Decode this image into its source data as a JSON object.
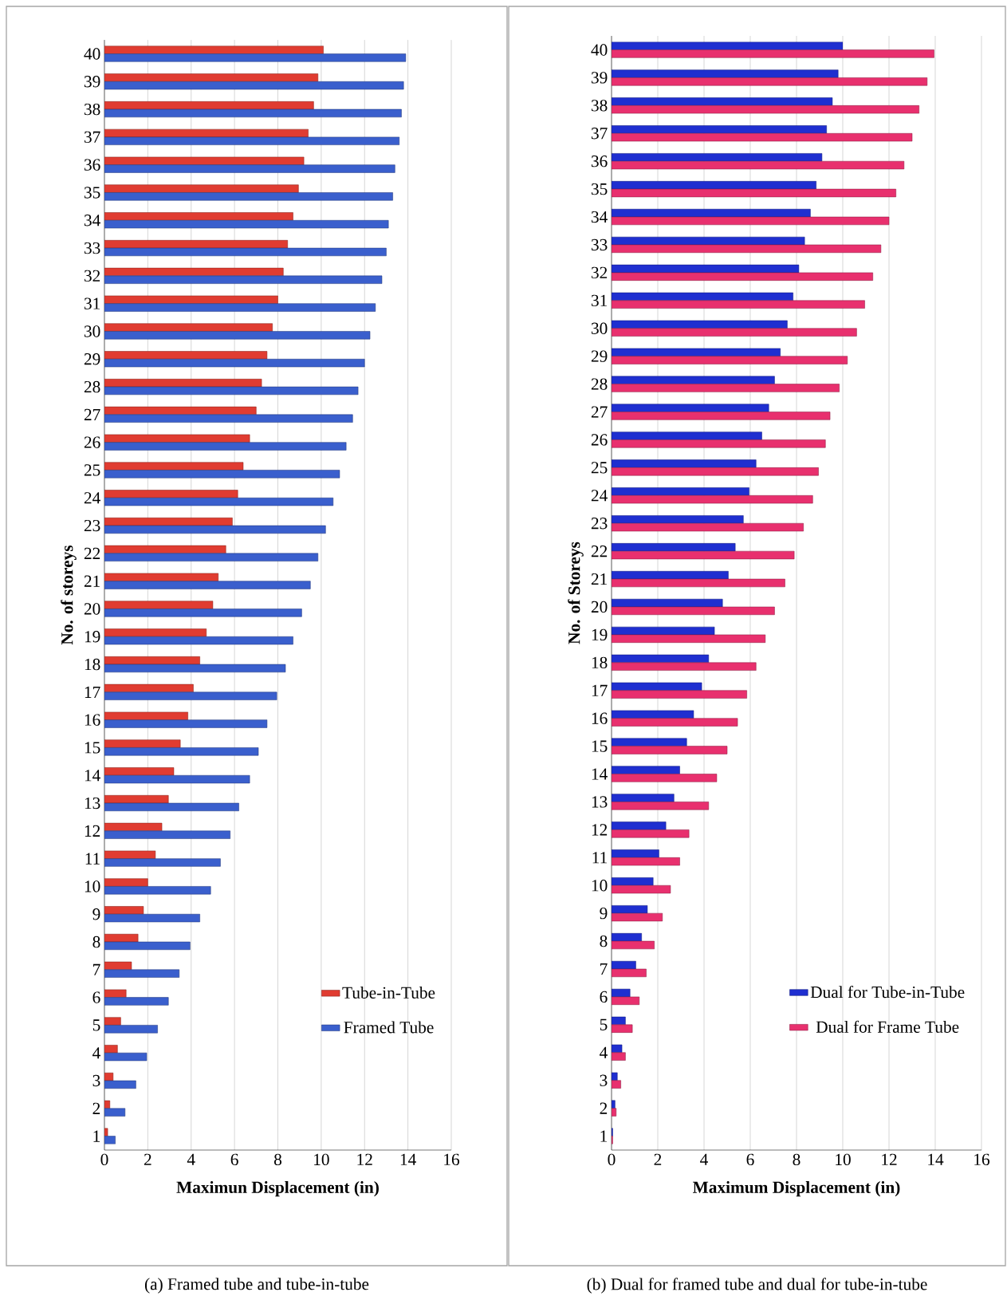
{
  "chart_data": [
    {
      "type": "bar",
      "orientation": "horizontal",
      "xlabel": "Maximun Displacement (in)",
      "ylabel": "No. of storeys",
      "categories": [
        "40",
        "39",
        "38",
        "37",
        "36",
        "35",
        "34",
        "33",
        "32",
        "31",
        "30",
        "29",
        "28",
        "27",
        "26",
        "25",
        "24",
        "23",
        "22",
        "21",
        "20",
        "19",
        "18",
        "17",
        "16",
        "15",
        "14",
        "13",
        "12",
        "11",
        "10",
        "9",
        "8",
        "7",
        "6",
        "5",
        "4",
        "3",
        "2",
        "1"
      ],
      "series": [
        {
          "name": "Tube-in-Tube",
          "color": "#e03c31",
          "values": [
            10.1,
            9.85,
            9.65,
            9.4,
            9.2,
            8.95,
            8.7,
            8.45,
            8.25,
            8.0,
            7.75,
            7.5,
            7.25,
            7.0,
            6.7,
            6.4,
            6.15,
            5.9,
            5.6,
            5.25,
            5.0,
            4.7,
            4.4,
            4.1,
            3.85,
            3.5,
            3.2,
            2.95,
            2.65,
            2.35,
            2.0,
            1.8,
            1.55,
            1.25,
            1.0,
            0.75,
            0.6,
            0.4,
            0.25,
            0.15
          ]
        },
        {
          "name": "Framed Tube",
          "color": "#3a5fcd",
          "values": [
            13.9,
            13.8,
            13.7,
            13.6,
            13.4,
            13.3,
            13.1,
            13.0,
            12.8,
            12.5,
            12.25,
            12.0,
            11.7,
            11.45,
            11.15,
            10.85,
            10.55,
            10.2,
            9.85,
            9.5,
            9.1,
            8.7,
            8.35,
            7.95,
            7.5,
            7.1,
            6.7,
            6.2,
            5.8,
            5.35,
            4.9,
            4.4,
            3.95,
            3.45,
            2.95,
            2.45,
            1.95,
            1.45,
            0.95,
            0.5
          ]
        }
      ],
      "xlim": [
        0,
        16
      ],
      "xticks": [
        0,
        2,
        4,
        6,
        8,
        10,
        12,
        14,
        16
      ],
      "grid": "x",
      "legend": "bottom right",
      "annotations": [
        "(a)  Framed tube and tube-in-tube"
      ]
    },
    {
      "type": "bar",
      "orientation": "horizontal",
      "xlabel": "Maximum Displacement (in)",
      "ylabel": "No. of Storeys",
      "categories": [
        "40",
        "39",
        "38",
        "37",
        "36",
        "35",
        "34",
        "33",
        "32",
        "31",
        "30",
        "29",
        "28",
        "27",
        "26",
        "25",
        "24",
        "23",
        "22",
        "21",
        "20",
        "19",
        "18",
        "17",
        "16",
        "15",
        "14",
        "13",
        "12",
        "11",
        "10",
        "9",
        "8",
        "7",
        "6",
        "5",
        "4",
        "3",
        "2",
        "1"
      ],
      "series": [
        {
          "name": "Dual for Tube-in-Tube",
          "color": "#1f2fd0",
          "values": [
            10.0,
            9.8,
            9.55,
            9.3,
            9.1,
            8.85,
            8.6,
            8.35,
            8.1,
            7.85,
            7.6,
            7.3,
            7.05,
            6.8,
            6.5,
            6.25,
            5.95,
            5.7,
            5.35,
            5.05,
            4.8,
            4.45,
            4.2,
            3.9,
            3.55,
            3.25,
            2.95,
            2.7,
            2.35,
            2.05,
            1.8,
            1.55,
            1.3,
            1.05,
            0.8,
            0.6,
            0.45,
            0.25,
            0.15,
            0.05
          ]
        },
        {
          "name": "Dual for Frame Tube",
          "color": "#e8306e",
          "values": [
            13.95,
            13.65,
            13.3,
            13.0,
            12.65,
            12.3,
            12.0,
            11.65,
            11.3,
            10.95,
            10.6,
            10.2,
            9.85,
            9.45,
            9.25,
            8.95,
            8.7,
            8.3,
            7.9,
            7.5,
            7.05,
            6.65,
            6.25,
            5.85,
            5.45,
            5.0,
            4.55,
            4.2,
            3.35,
            2.95,
            2.55,
            2.2,
            1.85,
            1.5,
            1.2,
            0.9,
            0.6,
            0.4,
            0.2,
            0.05
          ]
        }
      ],
      "xlim": [
        0,
        16
      ],
      "xticks": [
        0,
        2,
        4,
        6,
        8,
        10,
        12,
        14,
        16
      ],
      "grid": "x",
      "legend": "bottom right",
      "annotations": [
        "(b) Dual for framed tube and dual for tube-in-tube"
      ]
    }
  ]
}
